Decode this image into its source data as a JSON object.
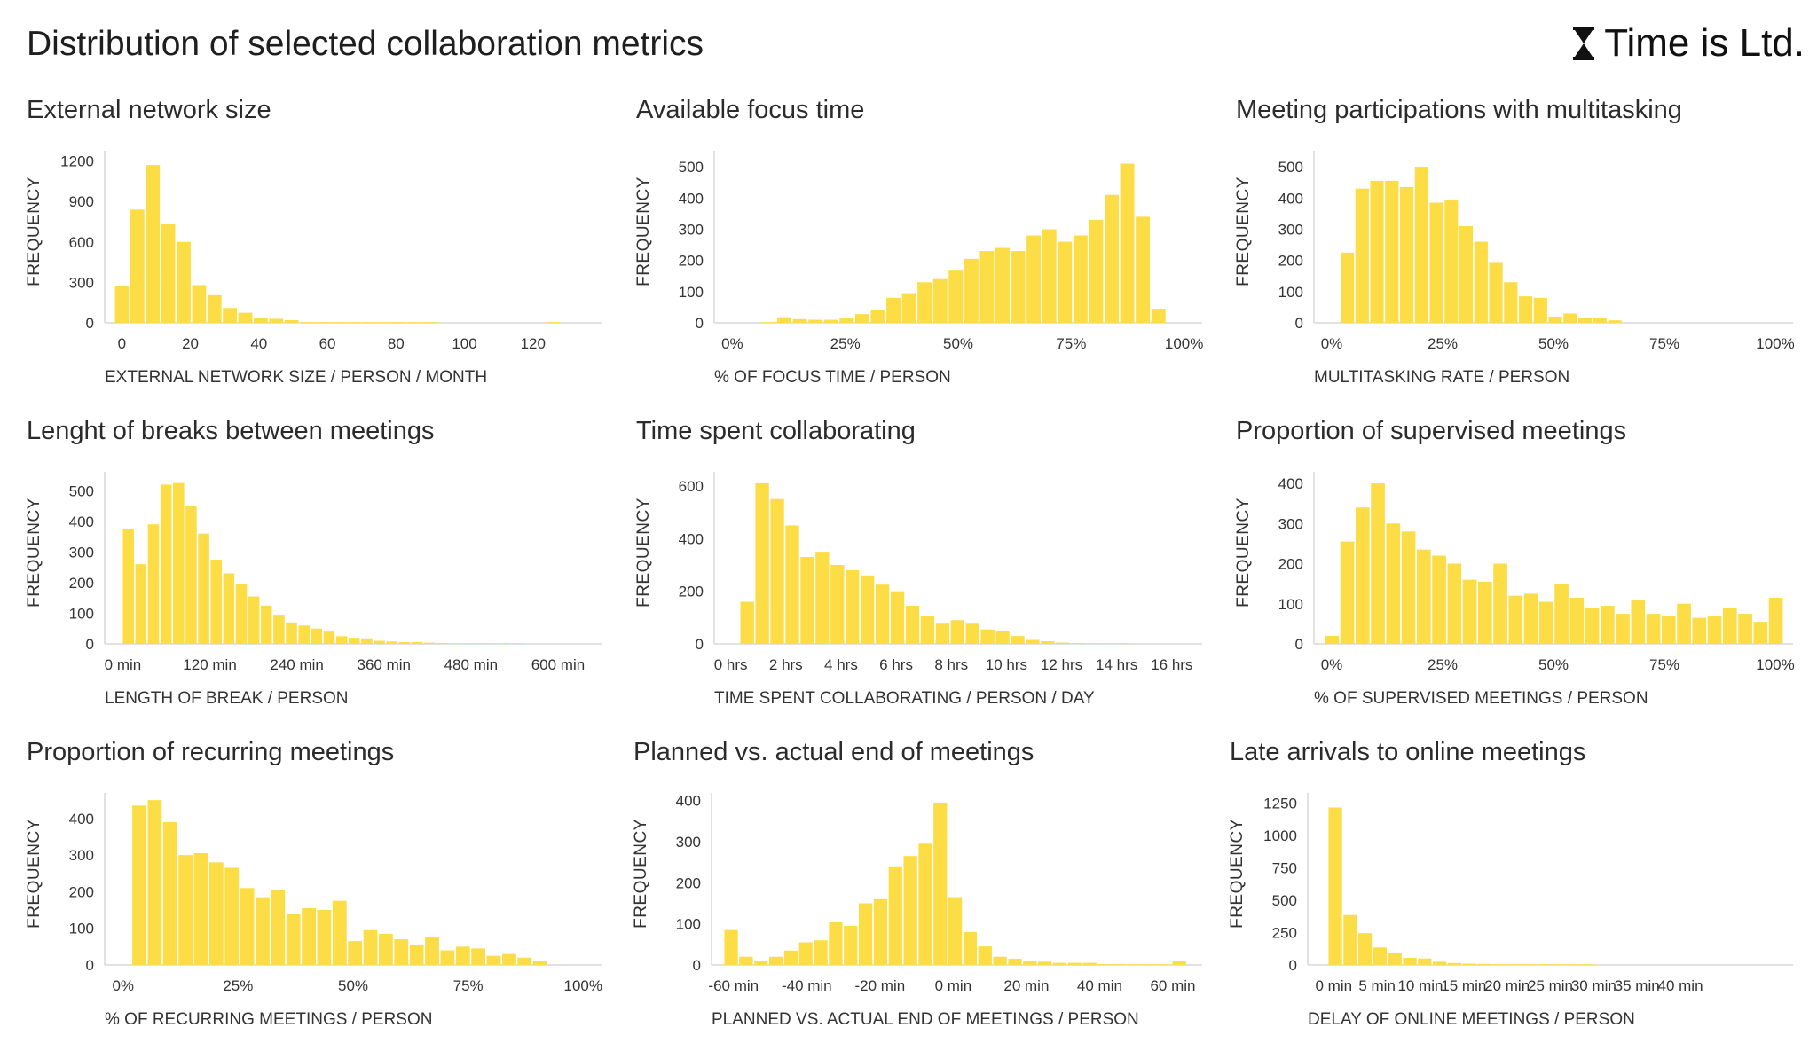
{
  "page": {
    "title": "Distribution of selected collaboration metrics",
    "brand": "Time is Ltd."
  },
  "colors": {
    "bar": "#fcdd45",
    "axis": "#d9d9d9",
    "text": "#333333"
  },
  "chart_data": [
    {
      "id": "external-network-size",
      "type": "bar",
      "title": "External network size",
      "xlabel": "EXTERNAL NETWORK SIZE / PERSON / MONTH",
      "ylabel": "FREQUENCY",
      "xlim": [
        -5,
        140
      ],
      "ylim": [
        0,
        1250
      ],
      "x_ticks": [
        0,
        20,
        40,
        60,
        80,
        100,
        120
      ],
      "x_tick_labels": [
        "0",
        "20",
        "40",
        "60",
        "80",
        "100",
        "120"
      ],
      "y_ticks": [
        0,
        300,
        600,
        900,
        1200
      ],
      "y_tick_labels": [
        "0",
        "300",
        "600",
        "900",
        "1200"
      ],
      "bins_start": -2,
      "bin_width": 4.5,
      "values": [
        270,
        840,
        1170,
        730,
        600,
        280,
        205,
        110,
        75,
        35,
        30,
        20,
        5,
        3,
        2,
        2,
        1,
        1,
        1,
        1,
        1,
        0,
        0,
        0,
        0,
        0,
        0,
        0,
        1
      ]
    },
    {
      "id": "available-focus-time",
      "type": "bar",
      "title": "Available focus time",
      "xlabel": "% OF FOCUS TIME / PERSON",
      "ylabel": "FREQUENCY",
      "xlim": [
        -4,
        104
      ],
      "ylim": [
        0,
        540
      ],
      "x_ticks": [
        0,
        25,
        50,
        75,
        100
      ],
      "x_tick_labels": [
        "0%",
        "25%",
        "50%",
        "75%",
        "100%"
      ],
      "y_ticks": [
        0,
        100,
        200,
        300,
        400,
        500
      ],
      "y_tick_labels": [
        "0",
        "100",
        "200",
        "300",
        "400",
        "500"
      ],
      "bins_start": 6.5,
      "bin_width": 3.45,
      "values": [
        2,
        18,
        12,
        10,
        10,
        14,
        28,
        40,
        80,
        95,
        130,
        140,
        170,
        205,
        230,
        240,
        230,
        280,
        300,
        260,
        280,
        330,
        410,
        510,
        340,
        45
      ]
    },
    {
      "id": "meeting-participations-multitasking",
      "type": "bar",
      "title": "Meeting participations with multitasking",
      "xlabel": "MULTITASKING RATE / PERSON",
      "ylabel": "FREQUENCY",
      "xlim": [
        -4,
        104
      ],
      "ylim": [
        0,
        540
      ],
      "x_ticks": [
        0,
        25,
        50,
        75,
        100
      ],
      "x_tick_labels": [
        "0%",
        "25%",
        "50%",
        "75%",
        "100%"
      ],
      "y_ticks": [
        0,
        100,
        200,
        300,
        400,
        500
      ],
      "y_tick_labels": [
        "0",
        "100",
        "200",
        "300",
        "400",
        "500"
      ],
      "bins_start": 2,
      "bin_width": 3.35,
      "values": [
        225,
        430,
        455,
        455,
        435,
        500,
        385,
        395,
        310,
        260,
        195,
        130,
        85,
        80,
        20,
        30,
        15,
        15,
        8
      ]
    },
    {
      "id": "length-of-breaks",
      "type": "bar",
      "title": "Lenght of breaks between meetings",
      "xlabel": "LENGTH OF BREAK / PERSON",
      "ylabel": "FREQUENCY",
      "xlim": [
        -25,
        660
      ],
      "ylim": [
        0,
        550
      ],
      "x_ticks": [
        0,
        120,
        240,
        360,
        480,
        600
      ],
      "x_tick_labels": [
        "0 min",
        "120 min",
        "240 min",
        "360 min",
        "480 min",
        "600 min"
      ],
      "y_ticks": [
        0,
        100,
        200,
        300,
        400,
        500
      ],
      "y_tick_labels": [
        "0",
        "100",
        "200",
        "300",
        "400",
        "500"
      ],
      "bins_start": 0,
      "bin_width": 17.3,
      "values": [
        375,
        260,
        390,
        520,
        525,
        450,
        360,
        275,
        230,
        195,
        155,
        125,
        95,
        70,
        60,
        50,
        40,
        25,
        20,
        18,
        10,
        8,
        6,
        6,
        4,
        3,
        2,
        2,
        2,
        1,
        1,
        2
      ]
    },
    {
      "id": "time-spent-collaborating",
      "type": "bar",
      "title": "Time spent collaborating",
      "xlabel": "TIME SPENT COLLABORATING / PERSON / DAY",
      "ylabel": "FREQUENCY",
      "xlim": [
        -0.6,
        17.1
      ],
      "ylim": [
        0,
        640
      ],
      "x_ticks": [
        0,
        2,
        4,
        6,
        8,
        10,
        12,
        14,
        16
      ],
      "x_tick_labels": [
        "0 hrs",
        "2 hrs",
        "4 hrs",
        "6 hrs",
        "8 hrs",
        "10 hrs",
        "12 hrs",
        "14 hrs",
        "16 hrs"
      ],
      "y_ticks": [
        0,
        200,
        400,
        600
      ],
      "y_tick_labels": [
        "0",
        "200",
        "400",
        "600"
      ],
      "bins_start": 0.35,
      "bin_width": 0.545,
      "values": [
        160,
        610,
        550,
        450,
        330,
        350,
        300,
        280,
        260,
        225,
        200,
        145,
        105,
        80,
        90,
        80,
        55,
        50,
        30,
        15,
        10,
        5,
        3,
        2,
        1,
        1
      ]
    },
    {
      "id": "proportion-supervised-meetings",
      "type": "bar",
      "title": "Proportion of supervised meetings",
      "xlabel": "% OF SUPERVISED MEETINGS / PERSON",
      "ylabel": "FREQUENCY",
      "xlim": [
        -4,
        104
      ],
      "ylim": [
        0,
        420
      ],
      "x_ticks": [
        0,
        25,
        50,
        75,
        100
      ],
      "x_tick_labels": [
        "0%",
        "25%",
        "50%",
        "75%",
        "100%"
      ],
      "y_ticks": [
        0,
        100,
        200,
        300,
        400
      ],
      "y_tick_labels": [
        "0",
        "100",
        "200",
        "300",
        "400"
      ],
      "bins_start": -1.5,
      "bin_width": 3.45,
      "values": [
        20,
        255,
        340,
        400,
        300,
        280,
        235,
        220,
        200,
        160,
        155,
        200,
        120,
        125,
        105,
        150,
        115,
        90,
        95,
        75,
        110,
        75,
        70,
        100,
        65,
        70,
        90,
        75,
        55,
        115
      ]
    },
    {
      "id": "proportion-recurring-meetings",
      "type": "bar",
      "title": "Proportion of recurring meetings",
      "xlabel": "% OF RECURRING MEETINGS / PERSON",
      "ylabel": "FREQUENCY",
      "xlim": [
        -4,
        104
      ],
      "ylim": [
        0,
        460
      ],
      "x_ticks": [
        0,
        25,
        50,
        75,
        100
      ],
      "x_tick_labels": [
        "0%",
        "25%",
        "50%",
        "75%",
        "100%"
      ],
      "y_ticks": [
        0,
        100,
        200,
        300,
        400
      ],
      "y_tick_labels": [
        "0",
        "100",
        "200",
        "300",
        "400"
      ],
      "bins_start": 2,
      "bin_width": 3.35,
      "values": [
        435,
        450,
        390,
        300,
        305,
        280,
        265,
        210,
        185,
        205,
        140,
        155,
        150,
        175,
        65,
        95,
        85,
        70,
        55,
        75,
        40,
        50,
        45,
        25,
        30,
        20,
        10
      ]
    },
    {
      "id": "planned-vs-actual-end",
      "type": "bar",
      "title": "Planned vs. actual end of meetings",
      "xlabel": "PLANNED VS. ACTUAL END OF MEETINGS / PERSON",
      "ylabel": "FREQUENCY",
      "xlim": [
        -66,
        68
      ],
      "ylim": [
        0,
        410
      ],
      "x_ticks": [
        -60,
        -40,
        -20,
        0,
        20,
        40,
        60
      ],
      "x_tick_labels": [
        "-60 min",
        "-40 min",
        "-20 min",
        "0 min",
        "20 min",
        "40 min",
        "60 min"
      ],
      "y_ticks": [
        0,
        100,
        200,
        300,
        400
      ],
      "y_tick_labels": [
        "0",
        "100",
        "200",
        "300",
        "400"
      ],
      "bins_start": -62.5,
      "bin_width": 4.08,
      "values": [
        85,
        20,
        10,
        20,
        35,
        55,
        60,
        105,
        95,
        150,
        160,
        240,
        265,
        295,
        395,
        165,
        80,
        45,
        20,
        15,
        10,
        8,
        5,
        5,
        5,
        2,
        1,
        1,
        1,
        1,
        10
      ]
    },
    {
      "id": "late-arrivals-online-meetings",
      "type": "bar",
      "title": "Late arrivals to online meetings",
      "xlabel": "DELAY OF ONLINE MEETINGS / PERSON",
      "ylabel": "FREQUENCY",
      "xlim": [
        -3,
        53
      ],
      "ylim": [
        0,
        1300
      ],
      "x_ticks": [
        0,
        5,
        10,
        15,
        20,
        25,
        30,
        35,
        40
      ],
      "x_tick_labels": [
        "0 min",
        "5 min",
        "10 min",
        "15 min",
        "20 min",
        "25 min",
        "30 min",
        "35 min",
        "40 min"
      ],
      "y_ticks": [
        0,
        250,
        500,
        750,
        1000,
        1250
      ],
      "y_tick_labels": [
        "0",
        "250",
        "500",
        "750",
        "1000",
        "1250"
      ],
      "bins_start": -0.6,
      "bin_width": 1.72,
      "values": [
        1215,
        385,
        245,
        135,
        90,
        55,
        50,
        25,
        15,
        10,
        8,
        6,
        5,
        4,
        4,
        3,
        2,
        1
      ]
    }
  ]
}
